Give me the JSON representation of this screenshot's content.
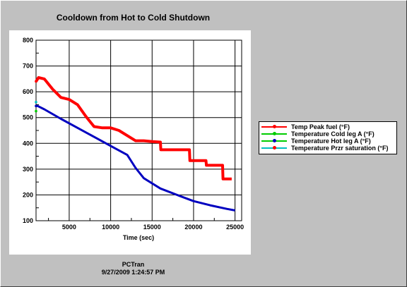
{
  "chart_data": {
    "type": "line",
    "title": "Cooldown from Hot to Cold Shutdown",
    "xlabel": "Time (sec)",
    "ylabel": "",
    "xlim": [
      1000,
      25800
    ],
    "ylim": [
      100,
      800
    ],
    "x_ticks": [
      5000,
      10000,
      15000,
      20000,
      25000
    ],
    "y_ticks": [
      100,
      200,
      300,
      400,
      500,
      600,
      700,
      800
    ],
    "grid": true,
    "legend_position": "right",
    "series": [
      {
        "name": "Temp Peak fuel (°F)",
        "color": "#ff0000",
        "x": [
          1000,
          1300,
          2000,
          3000,
          4000,
          5000,
          6000,
          7000,
          8000,
          9000,
          10000,
          11000,
          12000,
          13000,
          14000,
          15000,
          16000,
          16050,
          19500,
          19550,
          21500,
          21550,
          23500,
          23550,
          24600
        ],
        "y": [
          640,
          655,
          650,
          610,
          578,
          570,
          550,
          505,
          465,
          460,
          460,
          450,
          430,
          410,
          410,
          407,
          405,
          375,
          375,
          333,
          333,
          315,
          315,
          262,
          262
        ]
      },
      {
        "name": "Temperature Cold leg A (°F)",
        "color": "#00cc00",
        "x": [
          1000,
          1100
        ],
        "y": [
          525,
          525
        ]
      },
      {
        "name": "Temperature Hot leg A (°F)",
        "color": "#0000c0",
        "x": [
          1000,
          1200,
          2000,
          4000,
          6000,
          8000,
          10000,
          12000,
          13000,
          14000,
          16000,
          18000,
          20000,
          22000,
          24000,
          25000
        ],
        "y": [
          545,
          545,
          532,
          495,
          460,
          425,
          390,
          355,
          305,
          265,
          225,
          200,
          176,
          160,
          146,
          140
        ]
      },
      {
        "name": "Temperature Przr saturation (°F)",
        "color": "#00c0c0",
        "x": [
          1000,
          1100
        ],
        "y": [
          560,
          560
        ]
      }
    ]
  },
  "footer": {
    "line1": "PCTran",
    "line2": "9/27/2009 1:24:57 PM"
  },
  "colors": {
    "frame": "#c0c0c0",
    "plot_bg": "#ffffff"
  }
}
